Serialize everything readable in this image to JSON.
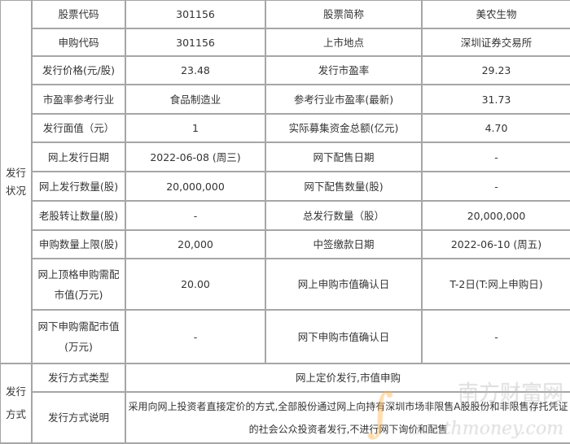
{
  "groups": {
    "issue_status": "发行状况",
    "issue_method": "发行方式"
  },
  "rows": [
    [
      "股票代码",
      "301156",
      "股票简称",
      "美农生物"
    ],
    [
      "申购代码",
      "301156",
      "上市地点",
      "深圳证券交易所"
    ],
    [
      "发行价格(元/股)",
      "23.48",
      "发行市盈率",
      "29.23"
    ],
    [
      "市盈率参考行业",
      "食品制造业",
      "参考行业市盈率(最新)",
      "31.73"
    ],
    [
      "发行面值（元）",
      "1",
      "实际募集资金总额(亿元)",
      "4.70"
    ],
    [
      "网上发行日期",
      "2022-06-08 (周三)",
      "网下配售日期",
      "-"
    ],
    [
      "网上发行数量(股)",
      "20,000,000",
      "网下配售数量(股)",
      "-"
    ],
    [
      "老股转让数量(股)",
      "-",
      "总发行数量（股）",
      "20,000,000"
    ],
    [
      "申购数量上限(股)",
      "20,000",
      "中签缴款日期",
      "2022-06-10 (周五)"
    ],
    [
      "网上顶格申购需配市值(万元)",
      "20.00",
      "网上申购市值确认日",
      "T-2日(T:网上申购日)"
    ],
    [
      "网下申购需配市值(万元)",
      "-",
      "网下申购市值确认日",
      "-"
    ]
  ],
  "method_rows": [
    [
      "发行方式类型",
      "网上定价发行,市值申购"
    ],
    [
      "发行方式说明",
      "采用向网上投资者直接定价的方式,全部股份通过网上向持有深圳市场非限售A股股份和非限售存托凭证的社会公众投资者发行,不进行网下询价和配售"
    ]
  ],
  "watermark": {
    "cn": "南方财富网",
    "en": "southmoney.com"
  }
}
